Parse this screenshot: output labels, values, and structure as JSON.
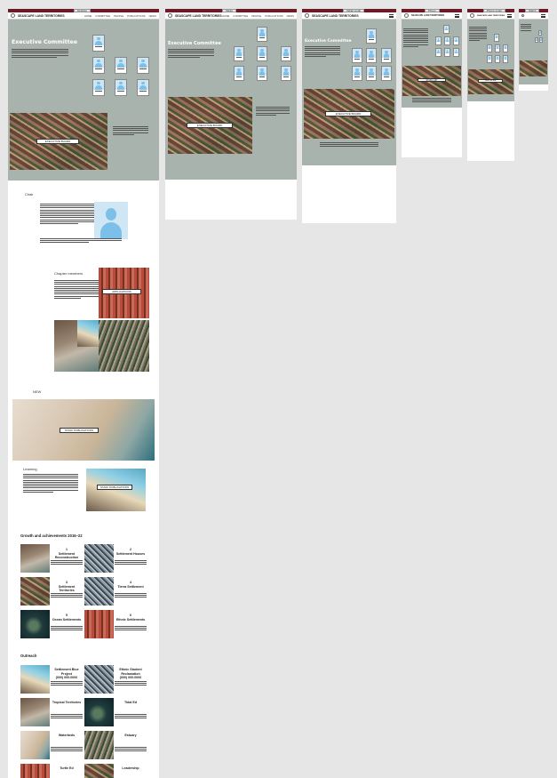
{
  "site": {
    "brand": "SEASCAPE LAND TERRITORIES",
    "nav": [
      "HOME",
      "COMMITTEE",
      "PEOPLE",
      "PUBLICATIONS",
      "NEWS"
    ],
    "tabs": [
      "Desktop",
      "Tablet",
      "Tablet small",
      "Phone",
      "Phone small",
      "Watch"
    ]
  },
  "hero": {
    "title": "Executive Committee",
    "button": "EXECUTIVE BOARD",
    "tablet_button": "STAFF LIST",
    "button_small": "VIEW MORE"
  },
  "sections": {
    "chair": "Chair",
    "chapter_members": "Chapter members",
    "chapter_button": "APPLICATIONS",
    "news": "NEW",
    "news_button": "STAFF PUBLICATIONS",
    "learning": "Learning",
    "learning_button": "STAFF PUBLICATIONS",
    "growth": "Growth and achievements 2016–22",
    "outreach": "Outreach"
  },
  "growth_items": [
    {
      "num": "1",
      "label": "Settlement Reconstruction"
    },
    {
      "num": "2",
      "label": "Settlement Houses"
    },
    {
      "num": "3",
      "label": "Settlement Territories"
    },
    {
      "num": "4",
      "label": "Tierra Settlement"
    },
    {
      "num": "5",
      "label": "Ocean Settlements"
    },
    {
      "num": "6",
      "label": "Ethnic Settlements"
    }
  ],
  "outreach_items": [
    {
      "label": "Settlement Blue Project",
      "sub": "(000) 000-0000"
    },
    {
      "label": "Ethnic Student Reclamation",
      "sub": "(000) 000-0000"
    },
    {
      "label": "Tropical Territories",
      "sub": ""
    },
    {
      "label": "Tidal Ed",
      "sub": ""
    },
    {
      "label": "Waterbeds",
      "sub": ""
    },
    {
      "label": "Estuary",
      "sub": ""
    },
    {
      "label": "Turtle Ed",
      "sub": ""
    },
    {
      "label": "Leadership",
      "sub": ""
    }
  ],
  "colors": {
    "accent": "#6e1a26",
    "hero": "#a9b3ae",
    "avatar": "#7cc0ea"
  }
}
